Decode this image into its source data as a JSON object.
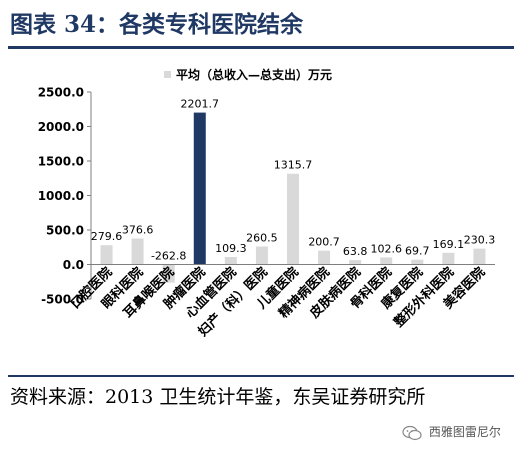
{
  "header": {
    "title": "图表 34：各类专科医院结余"
  },
  "source": {
    "text": "资料来源：2013 卫生统计年鉴，东吴证券研究所"
  },
  "watermark": {
    "text": "西雅图雷尼尔"
  },
  "colors": {
    "highlight": "#1f3864",
    "bar": "#d9d9d9",
    "axis": "#7f7f7f",
    "title": "#1f3864"
  },
  "chart_data": {
    "type": "bar",
    "legend": "平均（总收入—总支出）万元",
    "legend_position": "top",
    "categories": [
      "口腔医院",
      "眼科医院",
      "耳鼻喉医院",
      "肿瘤医院",
      "心血管医院",
      "妇产（科）医院",
      "儿童医院",
      "精神病医院",
      "皮肤病医院",
      "骨科医院",
      "康复医院",
      "整形外科医院",
      "美容医院"
    ],
    "values": [
      279.6,
      376.6,
      -262.8,
      2201.7,
      109.3,
      260.5,
      1315.7,
      200.7,
      63.8,
      102.6,
      69.7,
      169.1,
      230.3
    ],
    "data_labels": [
      "279.6",
      "376.6",
      "-262.8",
      "2201.7",
      "109.3",
      "260.5",
      "1315.7",
      "200.7",
      "63.8",
      "102.6",
      "69.7",
      "169.1",
      "230.3"
    ],
    "highlight_category": "肿瘤医院",
    "ylim": [
      -500,
      2500
    ],
    "yticks": [
      -500,
      0,
      500,
      1000,
      1500,
      2000,
      2500
    ],
    "ytick_labels": [
      "-500.0",
      "0.0",
      "500.0",
      "1000.0",
      "1500.0",
      "2000.0",
      "2500.0"
    ],
    "grid": false
  }
}
